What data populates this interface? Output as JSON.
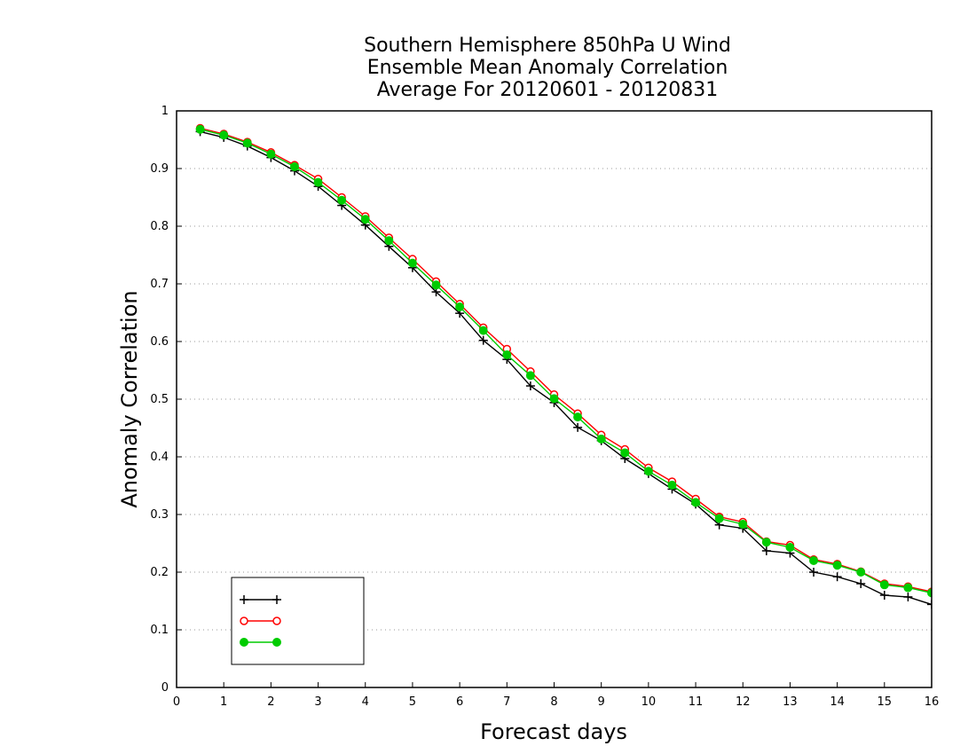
{
  "chart_data": {
    "type": "line",
    "title": [
      "Southern Hemisphere 850hPa U Wind",
      "Ensemble Mean Anomaly Correlation",
      "Average For 20120601 - 20120831"
    ],
    "xlabel": "Forecast days",
    "ylabel": "Anomaly Correlation",
    "xlim": [
      0,
      16
    ],
    "ylim": [
      0,
      1
    ],
    "xticks": [
      0,
      1,
      2,
      3,
      4,
      5,
      6,
      7,
      8,
      9,
      10,
      11,
      12,
      13,
      14,
      15,
      16
    ],
    "yticks": [
      0,
      0.1,
      0.2,
      0.3,
      0.4,
      0.5,
      0.6,
      0.7,
      0.8,
      0.9,
      1
    ],
    "grid": "horizontal dotted",
    "legend": "bottom-left",
    "x": [
      0.5,
      1,
      1.5,
      2,
      2.5,
      3,
      3.5,
      4,
      4.5,
      5,
      5.5,
      6,
      6.5,
      7,
      7.5,
      8,
      8.5,
      9,
      9.5,
      10,
      10.5,
      11,
      11.5,
      12,
      12.5,
      13,
      13.5,
      14,
      14.5,
      15,
      15.5,
      16
    ],
    "series": [
      {
        "name": "",
        "color": "#000000",
        "marker": "plus",
        "values": [
          0.964,
          0.954,
          0.939,
          0.919,
          0.896,
          0.869,
          0.836,
          0.802,
          0.765,
          0.728,
          0.686,
          0.649,
          0.602,
          0.569,
          0.523,
          0.494,
          0.451,
          0.428,
          0.397,
          0.371,
          0.344,
          0.318,
          0.282,
          0.276,
          0.237,
          0.233,
          0.2,
          0.192,
          0.18,
          0.16,
          0.157,
          0.144
        ]
      },
      {
        "name": "",
        "color": "#ff0000",
        "marker": "open-circle",
        "values": [
          0.97,
          0.96,
          0.946,
          0.928,
          0.906,
          0.882,
          0.85,
          0.817,
          0.78,
          0.743,
          0.704,
          0.665,
          0.624,
          0.587,
          0.548,
          0.508,
          0.475,
          0.438,
          0.413,
          0.381,
          0.357,
          0.327,
          0.296,
          0.287,
          0.253,
          0.247,
          0.222,
          0.214,
          0.201,
          0.18,
          0.175,
          0.166
        ]
      },
      {
        "name": "",
        "color": "#00cc00",
        "marker": "filled-circle",
        "values": [
          0.968,
          0.958,
          0.944,
          0.925,
          0.903,
          0.876,
          0.845,
          0.812,
          0.775,
          0.736,
          0.698,
          0.66,
          0.619,
          0.577,
          0.541,
          0.501,
          0.469,
          0.431,
          0.407,
          0.375,
          0.351,
          0.321,
          0.293,
          0.283,
          0.252,
          0.243,
          0.22,
          0.212,
          0.2,
          0.178,
          0.173,
          0.164
        ]
      }
    ]
  }
}
